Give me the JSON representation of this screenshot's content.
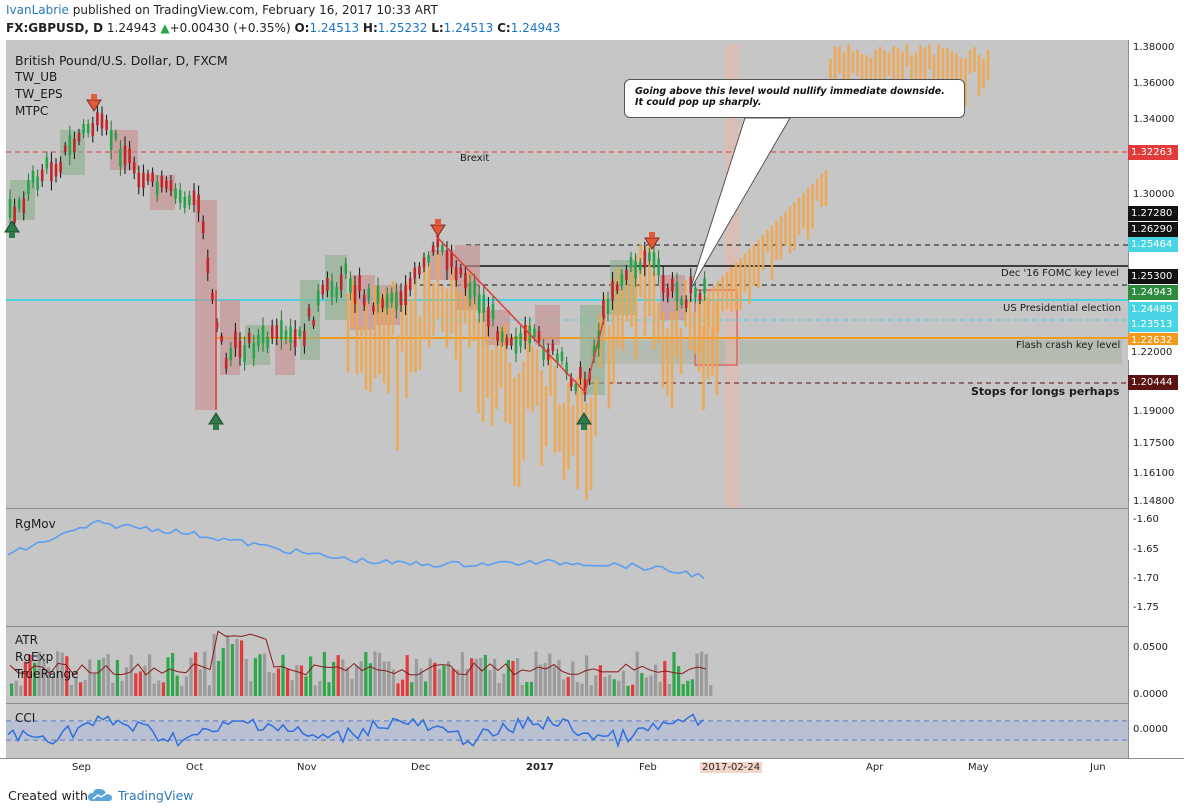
{
  "header": {
    "author": "IvanLabrie",
    "published_text": " published on TradingView.com, February 16, 2017 10:33 ART",
    "symbol": "FX:GBPUSD, D",
    "last": "1.24943",
    "change": "+0.00430 (+0.35%)",
    "open_label": "O:",
    "open": "1.24513",
    "high_label": "H:",
    "high": "1.25232",
    "low_label": "L:",
    "low": "1.24513",
    "close_label": "C:",
    "close": "1.24943"
  },
  "main_pane": {
    "title": "British Pound/U.S. Dollar, D, FXCM",
    "indicators": [
      "TW_UB",
      "TW_EPS",
      "MTPC"
    ],
    "callout_line1": "Going above this level would nullify immediate downside.",
    "callout_line2": "It could pop up sharply.",
    "brexit_label": "Brexit",
    "level_labels": {
      "fomc": "Dec '16 FOMC key level",
      "election": "US Presidential election",
      "flash": "Flash crash key level",
      "stops": "Stops for longs perhaps"
    },
    "price_axis": [
      "1.38000",
      "1.36000",
      "1.34000",
      "1.30000",
      "1.19000",
      "1.17500",
      "1.16100",
      "1.14800"
    ],
    "price_tags": [
      {
        "value": "1.32263",
        "color": "#e23b3b"
      },
      {
        "value": "1.27280",
        "color": "#111111"
      },
      {
        "value": "1.26290",
        "color": "#111111"
      },
      {
        "value": "1.25464",
        "color": "#49d4e4"
      },
      {
        "value": "1.25300",
        "color": "#111111"
      },
      {
        "value": "1.24943",
        "color": "#2e8a3c"
      },
      {
        "value": "1.24489",
        "color": "#49d4e4"
      },
      {
        "value": "1.23513",
        "color": "#49d4e4"
      },
      {
        "value": "1.22632",
        "color": "#f39a1b"
      },
      {
        "value": "1.22000",
        "color": "#ffffff"
      },
      {
        "value": "1.20444",
        "color": "#5a1212"
      }
    ]
  },
  "rgmov_pane": {
    "title": "RgMov",
    "axis": [
      "-1.60",
      "-1.65",
      "-1.70",
      "-1.75"
    ]
  },
  "atr_pane": {
    "titles": [
      "ATR",
      "RgExp",
      "TrueRange"
    ],
    "axis": [
      "0.0500",
      "0.0000"
    ]
  },
  "cci_pane": {
    "title": "CCI",
    "axis": [
      "0.0000"
    ]
  },
  "time_axis": [
    "Sep",
    "Oct",
    "Nov",
    "Dec",
    "2017",
    "Feb",
    "2017-02-24",
    "Apr",
    "May",
    "Jun"
  ],
  "footer": {
    "created": "Created with",
    "brand": "TradingView"
  },
  "colors": {
    "bull": "#27a34a",
    "bear": "#e23b3b",
    "forecast": "#f2a64a",
    "chart_bg": "#c6c6c6",
    "rgmov": "#5b9ef0",
    "cci": "#2f6fe0"
  }
}
